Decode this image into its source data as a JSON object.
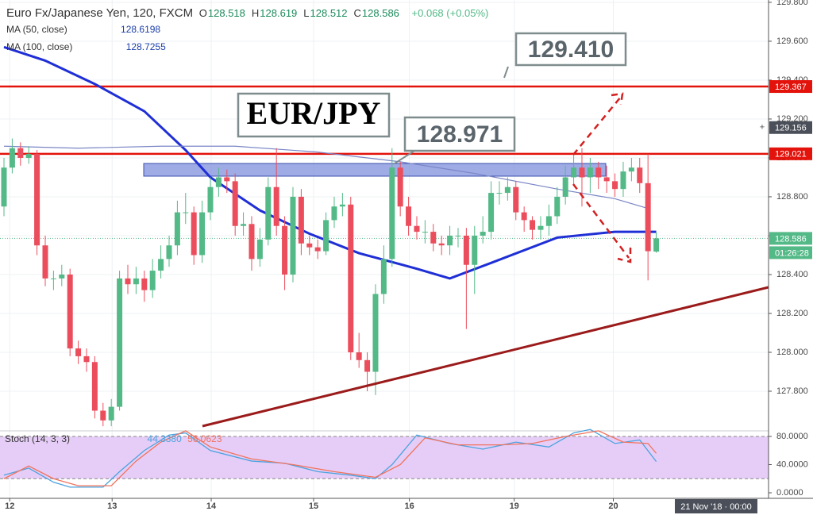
{
  "chart_data": [
    {
      "type": "candlestick",
      "title": "Euro Fx/Japanese Yen, 120, FXCM",
      "ohlc": [
        {
          "label": "O",
          "value": 128.518
        },
        {
          "label": "H",
          "value": 128.619
        },
        {
          "label": "L",
          "value": 128.512
        },
        {
          "label": "C",
          "value": 128.586
        }
      ],
      "change": "+0.068 (+0.05%)",
      "up_color": "#53b987",
      "down_color": "#eb4d5c",
      "candles": {
        "open": [
          128.75,
          128.95,
          129.05,
          129.0,
          129.02,
          128.55,
          128.38,
          128.38,
          128.4,
          128.02,
          127.98,
          127.95,
          127.7,
          127.65,
          127.72,
          128.38,
          128.35,
          128.38,
          128.32,
          128.42,
          128.48,
          128.55,
          128.72,
          128.72,
          128.5,
          128.72,
          128.85,
          128.9,
          128.88,
          128.65,
          128.66,
          128.48,
          128.58,
          128.85,
          128.65,
          128.4,
          128.8,
          128.56,
          128.54,
          128.52,
          128.68,
          128.75,
          128.76,
          128.0,
          127.96,
          127.9,
          128.3,
          128.48,
          128.95,
          128.75,
          128.65,
          128.62,
          128.62,
          128.56,
          128.55,
          128.6,
          128.6,
          128.45,
          128.6,
          128.62,
          128.82,
          128.82,
          128.85,
          128.72,
          128.68,
          128.63,
          128.65,
          128.7,
          128.8,
          128.9,
          128.95,
          128.9,
          128.95,
          128.9,
          128.88,
          128.84,
          128.93,
          128.95,
          128.87,
          128.518
        ],
        "high": [
          129.0,
          129.1,
          129.08,
          129.06,
          129.04,
          128.6,
          128.42,
          128.45,
          128.43,
          128.06,
          128.02,
          127.98,
          127.74,
          127.76,
          128.42,
          128.45,
          128.44,
          128.42,
          128.48,
          128.55,
          128.6,
          128.78,
          128.82,
          128.75,
          128.78,
          128.9,
          128.95,
          128.94,
          128.92,
          128.72,
          128.7,
          128.64,
          128.9,
          129.05,
          128.7,
          128.85,
          128.84,
          128.6,
          128.58,
          128.72,
          128.8,
          128.82,
          128.8,
          128.1,
          128.0,
          128.35,
          128.55,
          129.05,
          128.98,
          128.8,
          128.7,
          128.68,
          128.66,
          128.6,
          128.65,
          128.64,
          128.64,
          128.65,
          128.7,
          128.88,
          128.88,
          128.9,
          128.88,
          128.75,
          128.7,
          128.7,
          128.76,
          128.85,
          128.96,
          129.02,
          129.05,
          129.0,
          128.98,
          128.96,
          128.92,
          128.98,
          129.0,
          129.0,
          129.02,
          128.619
        ],
        "low": [
          128.7,
          128.92,
          128.96,
          128.97,
          128.5,
          128.34,
          128.32,
          128.34,
          127.98,
          127.94,
          127.9,
          127.66,
          127.62,
          127.62,
          127.7,
          128.3,
          128.3,
          128.26,
          128.28,
          128.38,
          128.44,
          128.5,
          128.66,
          128.45,
          128.46,
          128.68,
          128.8,
          128.82,
          128.6,
          128.6,
          128.42,
          128.44,
          128.55,
          128.6,
          128.32,
          128.36,
          128.5,
          128.5,
          128.48,
          128.5,
          128.64,
          128.7,
          127.96,
          127.92,
          127.8,
          127.78,
          128.25,
          128.44,
          128.7,
          128.6,
          128.58,
          128.56,
          128.52,
          128.5,
          128.5,
          128.54,
          128.12,
          128.3,
          128.56,
          128.58,
          128.76,
          128.78,
          128.68,
          128.62,
          128.58,
          128.58,
          128.6,
          128.66,
          128.76,
          128.86,
          128.75,
          128.82,
          128.84,
          128.82,
          128.8,
          128.8,
          128.88,
          128.82,
          128.37,
          128.512
        ],
        "close": [
          128.95,
          129.05,
          129.0,
          129.02,
          128.55,
          128.38,
          128.38,
          128.4,
          128.02,
          127.98,
          127.95,
          127.7,
          127.65,
          127.72,
          128.38,
          128.35,
          128.38,
          128.32,
          128.42,
          128.48,
          128.55,
          128.72,
          128.72,
          128.5,
          128.72,
          128.85,
          128.9,
          128.88,
          128.65,
          128.66,
          128.48,
          128.58,
          128.85,
          128.65,
          128.4,
          128.8,
          128.56,
          128.54,
          128.52,
          128.68,
          128.75,
          128.76,
          128.0,
          127.96,
          127.9,
          128.3,
          128.48,
          128.95,
          128.75,
          128.65,
          128.62,
          128.62,
          128.56,
          128.55,
          128.6,
          128.6,
          128.45,
          128.6,
          128.62,
          128.82,
          128.82,
          128.85,
          128.72,
          128.68,
          128.63,
          128.65,
          128.7,
          128.8,
          128.9,
          128.95,
          128.9,
          128.95,
          128.9,
          128.88,
          128.84,
          128.93,
          128.95,
          128.87,
          128.52,
          128.586
        ]
      },
      "series": [
        {
          "name": "MA (50, close)",
          "last": 128.6198,
          "color": "#1f2fd6",
          "x": [
            0,
            5,
            11,
            17,
            22,
            25,
            31,
            37,
            43,
            50,
            54,
            59,
            67,
            74,
            79
          ],
          "values": [
            129.57,
            129.5,
            129.38,
            129.24,
            129.04,
            128.9,
            128.73,
            128.61,
            128.51,
            128.43,
            128.38,
            128.46,
            128.59,
            128.62,
            128.62
          ]
        },
        {
          "name": "MA (100, close)",
          "last": 128.7255,
          "color": "#7b86c6",
          "x": [
            0,
            9,
            19,
            28,
            38,
            48,
            57,
            67,
            74,
            78
          ],
          "values": [
            129.06,
            129.05,
            129.06,
            129.06,
            129.03,
            128.98,
            128.92,
            128.84,
            128.79,
            128.74
          ]
        }
      ],
      "price_lines": [
        {
          "value": 129.367,
          "color": "#e3120b"
        },
        {
          "value": 129.021,
          "color": "#e3120b"
        }
      ],
      "current_price": 128.586,
      "countdown": "01:26:28",
      "crosshair_price": 129.156,
      "annotations": [
        "129.410",
        "EUR/JPY",
        "128.971"
      ],
      "xlim": [
        -0.48,
        92.6
      ],
      "xticks": [
        {
          "value": 0.7,
          "label": "12"
        },
        {
          "value": 13.1,
          "label": "13"
        },
        {
          "value": 25.1,
          "label": "14"
        },
        {
          "value": 37.5,
          "label": "15"
        },
        {
          "value": 49.1,
          "label": "16"
        },
        {
          "value": 61.8,
          "label": "19"
        },
        {
          "value": 73.8,
          "label": "20"
        }
      ],
      "cursor_time": "21 Nov '18 · 00:00",
      "ylim": [
        127.596,
        129.812
      ],
      "yticks": [
        {
          "value": 129.8,
          "label": "129.800"
        },
        {
          "value": 129.6,
          "label": "129.600"
        },
        {
          "value": 129.4,
          "label": "129.400"
        },
        {
          "value": 129.2,
          "label": "129.200"
        },
        {
          "value": 129.0,
          "label": "129.000"
        },
        {
          "value": 128.8,
          "label": "128.800"
        },
        {
          "value": 128.6,
          "label": "128.600"
        },
        {
          "value": 128.4,
          "label": "128.400"
        },
        {
          "value": 128.2,
          "label": "128.200"
        },
        {
          "value": 128.0,
          "label": "128.000"
        },
        {
          "value": 127.8,
          "label": "127.800"
        }
      ],
      "grid": true
    },
    {
      "type": "line",
      "title": "Stoch (14, 3, 3)",
      "series": [
        {
          "name": "%K",
          "last_label": "44.3380",
          "color": "#4aa3df",
          "x": [
            0,
            3,
            6,
            8,
            12,
            14,
            17,
            20,
            22,
            25,
            30,
            34,
            38,
            42,
            45,
            47,
            50,
            54,
            58,
            62,
            66,
            69,
            71,
            74,
            77,
            79
          ],
          "values": [
            25,
            35,
            15,
            8,
            8,
            30,
            60,
            82,
            85,
            60,
            45,
            42,
            30,
            25,
            20,
            40,
            82,
            70,
            62,
            72,
            65,
            85,
            90,
            70,
            75,
            44.338
          ]
        },
        {
          "name": "%D",
          "last_label": "56.0623",
          "color": "#f0735d",
          "x": [
            0,
            3,
            6,
            9,
            13,
            16,
            19,
            22,
            25,
            30,
            35,
            40,
            45,
            48,
            51,
            55,
            60,
            64,
            68,
            72,
            75,
            78,
            79
          ],
          "values": [
            20,
            38,
            20,
            10,
            10,
            45,
            72,
            88,
            65,
            48,
            40,
            30,
            22,
            40,
            78,
            68,
            68,
            70,
            80,
            88,
            72,
            70,
            56.0623
          ]
        }
      ],
      "band": [
        20,
        80
      ],
      "ylim": [
        -7.9,
        87.9
      ],
      "yticks": [
        {
          "value": 80,
          "label": "80.0000"
        },
        {
          "value": 40,
          "label": "40.0000"
        },
        {
          "value": 0,
          "label": "0.0000"
        }
      ]
    }
  ]
}
